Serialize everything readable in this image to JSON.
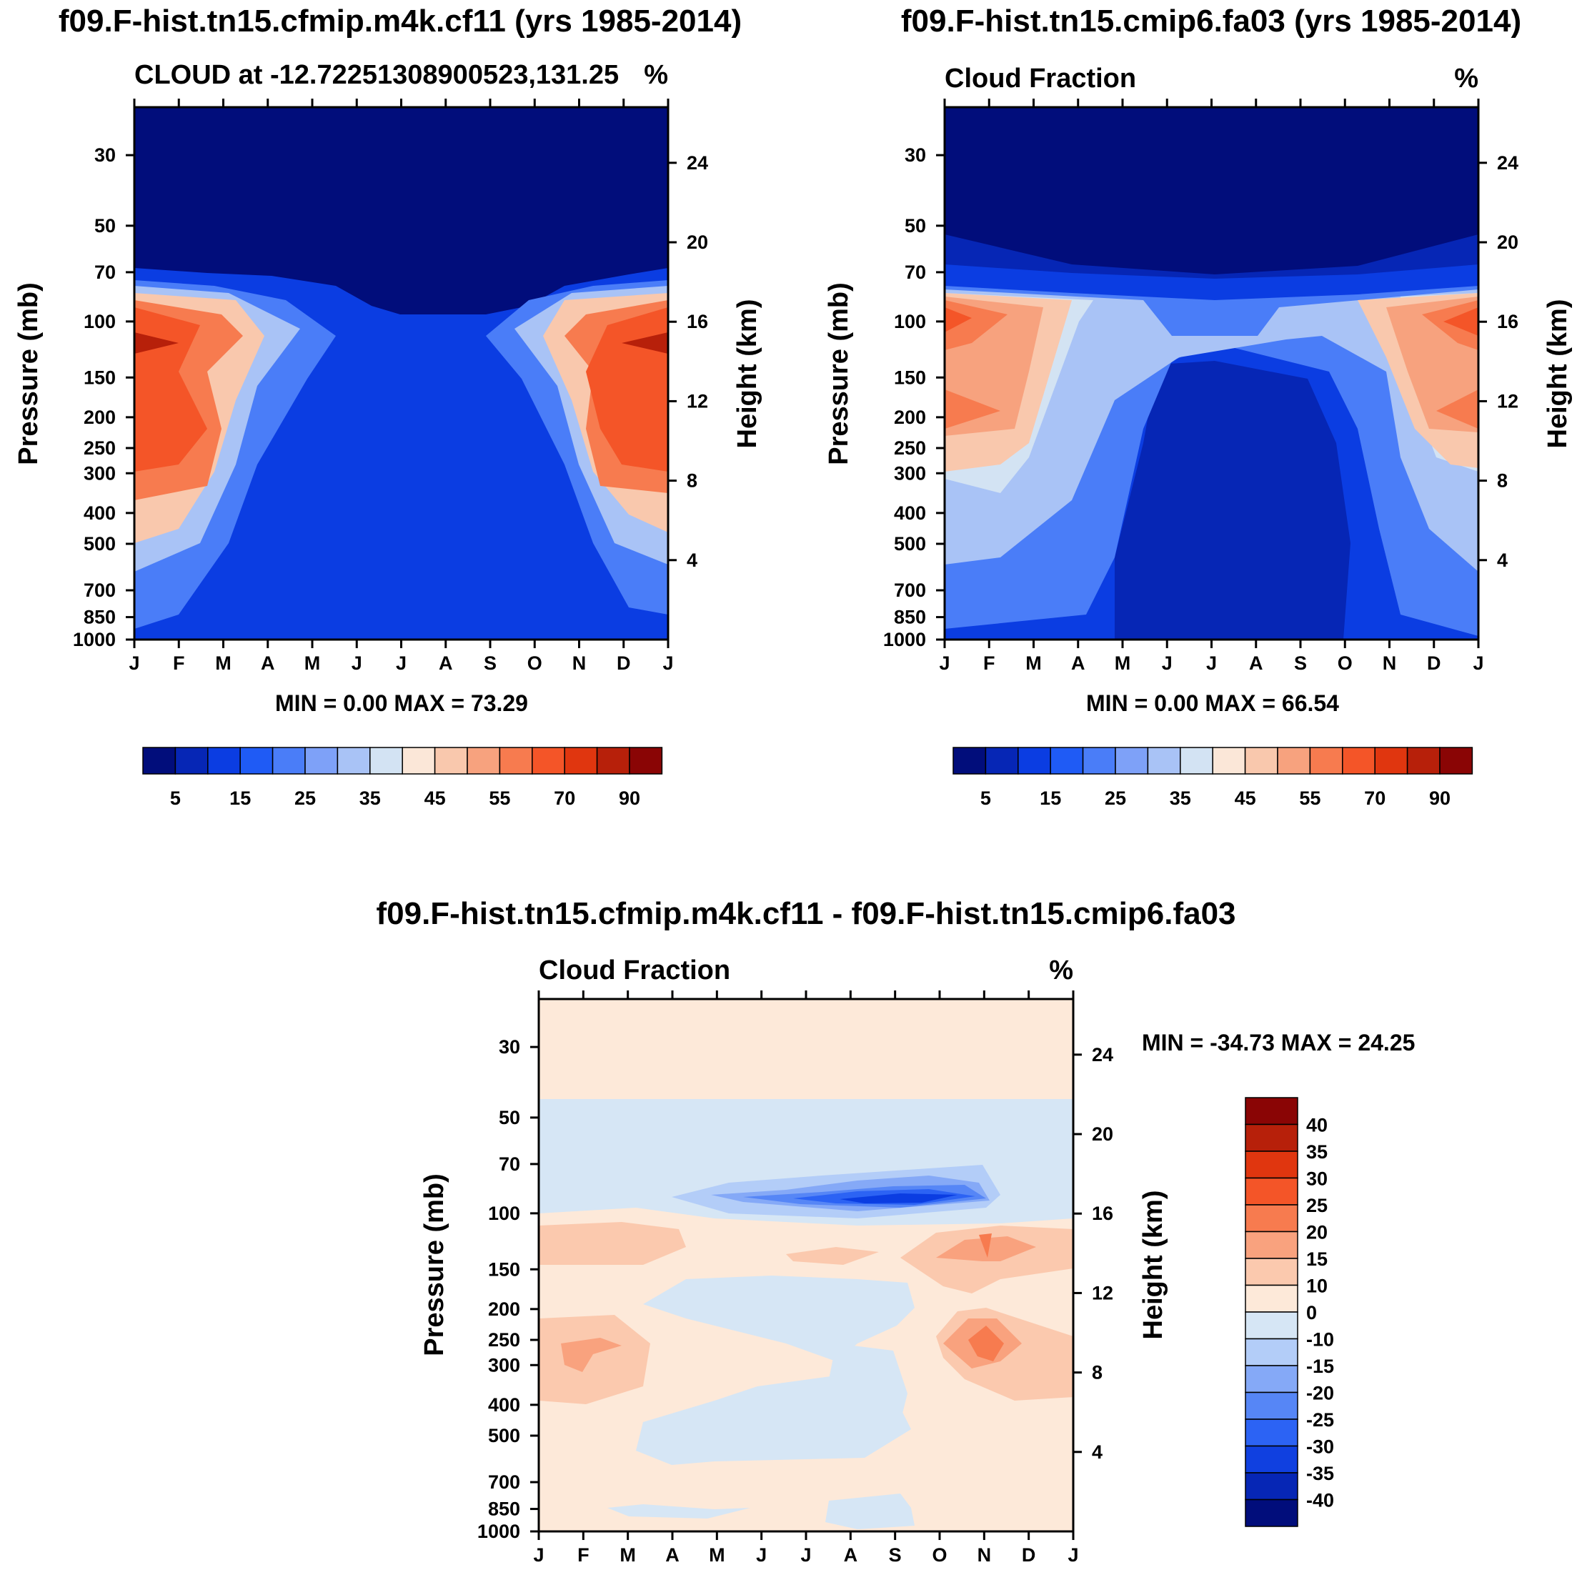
{
  "chart_data": [
    {
      "type": "contour",
      "title": "f09.F-hist.tn15.cfmip.m4k.cf11 (yrs 1985-2014)",
      "left_string": "CLOUD at -12.72251308900523,131.25",
      "right_string": "%",
      "ylabel": "Pressure (mb)",
      "ylabel_right": "Height (km)",
      "x_ticks": [
        "J",
        "F",
        "M",
        "A",
        "M",
        "J",
        "J",
        "A",
        "S",
        "O",
        "N",
        "D",
        "J"
      ],
      "y_ticks": [
        "30",
        "50",
        "70",
        "100",
        "150",
        "200",
        "250",
        "300",
        "400",
        "500",
        "700",
        "850",
        "1000"
      ],
      "y_ticks_right": [
        "24",
        "20",
        "16",
        "12",
        "8",
        "4"
      ],
      "ylim_mb": [
        1000,
        20
      ],
      "min_max": "MIN =   0.00 MAX =  73.29",
      "min": 0.0,
      "max": 73.29,
      "colorbar": {
        "levels": [
          0,
          5,
          10,
          15,
          20,
          25,
          30,
          35,
          40,
          45,
          50,
          55,
          60,
          70,
          80,
          90,
          100
        ],
        "labels": [
          "5",
          "15",
          "25",
          "35",
          "45",
          "55",
          "70",
          "90"
        ],
        "colors": [
          "#010d7b",
          "#0626b5",
          "#0b3de2",
          "#1f5bf5",
          "#4a7df8",
          "#7ea1f8",
          "#a9c3f6",
          "#d3e3f3",
          "#fbe7d8",
          "#f9c8ad",
          "#f7a27e",
          "#f77b4f",
          "#f45528",
          "#e0360f",
          "#b7200a",
          "#8a0505"
        ]
      }
    },
    {
      "type": "contour",
      "title": "f09.F-hist.tn15.cmip6.fa03 (yrs 1985-2014)",
      "left_string": "Cloud Fraction",
      "right_string": "%",
      "ylabel": "Pressure (mb)",
      "ylabel_right": "Height (km)",
      "x_ticks": [
        "J",
        "F",
        "M",
        "A",
        "M",
        "J",
        "J",
        "A",
        "S",
        "O",
        "N",
        "D",
        "J"
      ],
      "y_ticks": [
        "30",
        "50",
        "70",
        "100",
        "150",
        "200",
        "250",
        "300",
        "400",
        "500",
        "700",
        "850",
        "1000"
      ],
      "y_ticks_right": [
        "24",
        "20",
        "16",
        "12",
        "8",
        "4"
      ],
      "min_max": "MIN =   0.00 MAX =  66.54",
      "min": 0.0,
      "max": 66.54,
      "colorbar": {
        "labels": [
          "5",
          "15",
          "25",
          "35",
          "45",
          "55",
          "70",
          "90"
        ]
      }
    },
    {
      "type": "contour",
      "title": "f09.F-hist.tn15.cfmip.m4k.cf11 - f09.F-hist.tn15.cmip6.fa03",
      "left_string": "Cloud Fraction",
      "right_string": "%",
      "ylabel": "Pressure (mb)",
      "ylabel_right": "Height (km)",
      "x_ticks": [
        "J",
        "F",
        "M",
        "A",
        "M",
        "J",
        "J",
        "A",
        "S",
        "O",
        "N",
        "D",
        "J"
      ],
      "y_ticks": [
        "30",
        "50",
        "70",
        "100",
        "150",
        "200",
        "250",
        "300",
        "400",
        "500",
        "700",
        "850",
        "1000"
      ],
      "y_ticks_right": [
        "24",
        "20",
        "16",
        "12",
        "8",
        "4"
      ],
      "min_max": "MIN = -34.73 MAX =  24.25",
      "min": -34.73,
      "max": 24.25,
      "colorbar": {
        "levels": [
          -45,
          -40,
          -35,
          -30,
          -25,
          -20,
          -15,
          -10,
          0,
          10,
          15,
          20,
          25,
          30,
          35,
          40,
          45
        ],
        "labels": [
          "40",
          "35",
          "30",
          "25",
          "20",
          "15",
          "10",
          "0",
          "-10",
          "-15",
          "-20",
          "-25",
          "-30",
          "-35",
          "-40"
        ],
        "colors": [
          "#8a0505",
          "#b7200a",
          "#e0360f",
          "#f45528",
          "#f77b4f",
          "#f9a27e",
          "#fbc9ae",
          "#fde9d9",
          "#d6e6f5",
          "#b3cdf8",
          "#85a9f7",
          "#5686f6",
          "#2c63f4",
          "#1040e0",
          "#0626b5",
          "#010d7b"
        ]
      }
    }
  ]
}
